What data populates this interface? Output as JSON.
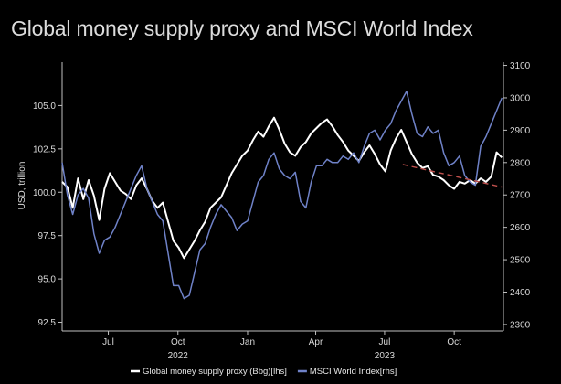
{
  "chart_data": {
    "type": "line",
    "title": "Global money supply proxy and MSCI World Index",
    "ylabel_left": "USD, trillion",
    "ylabel_right": "",
    "ylim_left": [
      92.0,
      107.5
    ],
    "ylim_right": [
      2280,
      3110
    ],
    "yticks_left": [
      "92.5",
      "95.0",
      "97.5",
      "100.0",
      "102.5",
      "105.0"
    ],
    "yticks_right": [
      "2300",
      "2400",
      "2500",
      "2600",
      "2700",
      "2800",
      "2900",
      "3000",
      "3100"
    ],
    "xlim": [
      "2022-05-01",
      "2023-12-05"
    ],
    "xticks": [
      {
        "label": "Jul",
        "date": "2022-07-01"
      },
      {
        "label": "Oct",
        "date": "2022-10-01"
      },
      {
        "label": "Jan",
        "date": "2023-01-01"
      },
      {
        "label": "Apr",
        "date": "2023-04-01"
      },
      {
        "label": "Jul",
        "date": "2023-07-01"
      },
      {
        "label": "Oct",
        "date": "2023-10-01"
      }
    ],
    "year_labels": [
      {
        "label": "2022",
        "date": "2022-10-01"
      },
      {
        "label": "2023",
        "date": "2023-07-01"
      }
    ],
    "series": [
      {
        "name": "Global money supply proxy (Bbg)[lhs]",
        "axis": "left",
        "color": "#ffffff",
        "points": [
          [
            "2022-05-01",
            100.6
          ],
          [
            "2022-05-08",
            100.3
          ],
          [
            "2022-05-15",
            99.1
          ],
          [
            "2022-05-22",
            100.8
          ],
          [
            "2022-05-29",
            99.6
          ],
          [
            "2022-06-05",
            100.7
          ],
          [
            "2022-06-12",
            99.8
          ],
          [
            "2022-06-19",
            98.4
          ],
          [
            "2022-06-26",
            100.2
          ],
          [
            "2022-07-03",
            101.1
          ],
          [
            "2022-07-10",
            100.6
          ],
          [
            "2022-07-17",
            100.1
          ],
          [
            "2022-07-24",
            99.9
          ],
          [
            "2022-07-31",
            99.6
          ],
          [
            "2022-08-07",
            100.4
          ],
          [
            "2022-08-14",
            100.8
          ],
          [
            "2022-08-21",
            100.2
          ],
          [
            "2022-08-28",
            99.5
          ],
          [
            "2022-09-04",
            99.1
          ],
          [
            "2022-09-11",
            99.4
          ],
          [
            "2022-09-18",
            98.3
          ],
          [
            "2022-09-25",
            97.2
          ],
          [
            "2022-10-02",
            96.8
          ],
          [
            "2022-10-09",
            96.2
          ],
          [
            "2022-10-16",
            96.7
          ],
          [
            "2022-10-23",
            97.2
          ],
          [
            "2022-10-30",
            97.8
          ],
          [
            "2022-11-06",
            98.3
          ],
          [
            "2022-11-13",
            99.1
          ],
          [
            "2022-11-20",
            99.4
          ],
          [
            "2022-11-27",
            99.7
          ],
          [
            "2022-12-04",
            100.4
          ],
          [
            "2022-12-11",
            101.1
          ],
          [
            "2022-12-18",
            101.6
          ],
          [
            "2022-12-25",
            102.1
          ],
          [
            "2023-01-01",
            102.4
          ],
          [
            "2023-01-08",
            103.0
          ],
          [
            "2023-01-15",
            103.5
          ],
          [
            "2023-01-22",
            103.2
          ],
          [
            "2023-01-29",
            103.8
          ],
          [
            "2023-02-05",
            104.3
          ],
          [
            "2023-02-12",
            103.6
          ],
          [
            "2023-02-19",
            102.8
          ],
          [
            "2023-02-26",
            102.3
          ],
          [
            "2023-03-05",
            102.1
          ],
          [
            "2023-03-12",
            102.6
          ],
          [
            "2023-03-19",
            102.9
          ],
          [
            "2023-03-26",
            103.4
          ],
          [
            "2023-04-02",
            103.7
          ],
          [
            "2023-04-09",
            104.0
          ],
          [
            "2023-04-16",
            104.2
          ],
          [
            "2023-04-23",
            103.8
          ],
          [
            "2023-04-30",
            103.3
          ],
          [
            "2023-05-07",
            102.9
          ],
          [
            "2023-05-14",
            102.4
          ],
          [
            "2023-05-21",
            102.1
          ],
          [
            "2023-05-28",
            101.8
          ],
          [
            "2023-06-04",
            102.3
          ],
          [
            "2023-06-11",
            102.7
          ],
          [
            "2023-06-18",
            102.2
          ],
          [
            "2023-06-25",
            101.6
          ],
          [
            "2023-07-02",
            101.2
          ],
          [
            "2023-07-09",
            102.4
          ],
          [
            "2023-07-16",
            103.1
          ],
          [
            "2023-07-23",
            103.6
          ],
          [
            "2023-07-30",
            102.9
          ],
          [
            "2023-08-06",
            102.2
          ],
          [
            "2023-08-13",
            101.7
          ],
          [
            "2023-08-20",
            101.4
          ],
          [
            "2023-08-27",
            101.5
          ],
          [
            "2023-09-03",
            101.0
          ],
          [
            "2023-09-10",
            100.9
          ],
          [
            "2023-09-17",
            100.7
          ],
          [
            "2023-09-24",
            100.4
          ],
          [
            "2023-10-01",
            100.2
          ],
          [
            "2023-10-08",
            100.6
          ],
          [
            "2023-10-15",
            100.5
          ],
          [
            "2023-10-22",
            100.7
          ],
          [
            "2023-10-29",
            100.5
          ],
          [
            "2023-11-05",
            100.8
          ],
          [
            "2023-11-12",
            100.6
          ],
          [
            "2023-11-19",
            100.9
          ],
          [
            "2023-11-26",
            102.3
          ],
          [
            "2023-12-03",
            102.0
          ]
        ]
      },
      {
        "name": "MSCI World Index[rhs]",
        "axis": "right",
        "color": "#6f82c8",
        "points": [
          [
            "2022-05-01",
            2800
          ],
          [
            "2022-05-08",
            2700
          ],
          [
            "2022-05-15",
            2640
          ],
          [
            "2022-05-22",
            2700
          ],
          [
            "2022-05-29",
            2720
          ],
          [
            "2022-06-05",
            2690
          ],
          [
            "2022-06-12",
            2580
          ],
          [
            "2022-06-19",
            2520
          ],
          [
            "2022-06-26",
            2560
          ],
          [
            "2022-07-03",
            2570
          ],
          [
            "2022-07-10",
            2600
          ],
          [
            "2022-07-17",
            2640
          ],
          [
            "2022-07-24",
            2680
          ],
          [
            "2022-07-31",
            2720
          ],
          [
            "2022-08-07",
            2760
          ],
          [
            "2022-08-14",
            2790
          ],
          [
            "2022-08-21",
            2720
          ],
          [
            "2022-08-28",
            2680
          ],
          [
            "2022-09-04",
            2640
          ],
          [
            "2022-09-11",
            2620
          ],
          [
            "2022-09-18",
            2520
          ],
          [
            "2022-09-25",
            2420
          ],
          [
            "2022-10-02",
            2420
          ],
          [
            "2022-10-09",
            2380
          ],
          [
            "2022-10-16",
            2390
          ],
          [
            "2022-10-23",
            2460
          ],
          [
            "2022-10-30",
            2530
          ],
          [
            "2022-11-06",
            2550
          ],
          [
            "2022-11-13",
            2600
          ],
          [
            "2022-11-20",
            2640
          ],
          [
            "2022-11-27",
            2670
          ],
          [
            "2022-12-04",
            2650
          ],
          [
            "2022-12-11",
            2630
          ],
          [
            "2022-12-18",
            2590
          ],
          [
            "2022-12-25",
            2610
          ],
          [
            "2023-01-01",
            2620
          ],
          [
            "2023-01-08",
            2680
          ],
          [
            "2023-01-15",
            2740
          ],
          [
            "2023-01-22",
            2760
          ],
          [
            "2023-01-29",
            2810
          ],
          [
            "2023-02-05",
            2830
          ],
          [
            "2023-02-12",
            2780
          ],
          [
            "2023-02-19",
            2760
          ],
          [
            "2023-02-26",
            2750
          ],
          [
            "2023-03-05",
            2770
          ],
          [
            "2023-03-12",
            2680
          ],
          [
            "2023-03-19",
            2660
          ],
          [
            "2023-03-26",
            2740
          ],
          [
            "2023-04-02",
            2790
          ],
          [
            "2023-04-09",
            2790
          ],
          [
            "2023-04-16",
            2810
          ],
          [
            "2023-04-23",
            2800
          ],
          [
            "2023-04-30",
            2800
          ],
          [
            "2023-05-07",
            2820
          ],
          [
            "2023-05-14",
            2810
          ],
          [
            "2023-05-21",
            2830
          ],
          [
            "2023-05-28",
            2800
          ],
          [
            "2023-06-04",
            2850
          ],
          [
            "2023-06-11",
            2890
          ],
          [
            "2023-06-18",
            2900
          ],
          [
            "2023-06-25",
            2870
          ],
          [
            "2023-07-02",
            2900
          ],
          [
            "2023-07-09",
            2920
          ],
          [
            "2023-07-16",
            2960
          ],
          [
            "2023-07-23",
            2990
          ],
          [
            "2023-07-30",
            3020
          ],
          [
            "2023-08-06",
            2950
          ],
          [
            "2023-08-13",
            2890
          ],
          [
            "2023-08-20",
            2880
          ],
          [
            "2023-08-27",
            2910
          ],
          [
            "2023-09-03",
            2890
          ],
          [
            "2023-09-10",
            2900
          ],
          [
            "2023-09-17",
            2830
          ],
          [
            "2023-09-24",
            2790
          ],
          [
            "2023-10-01",
            2800
          ],
          [
            "2023-10-08",
            2820
          ],
          [
            "2023-10-15",
            2760
          ],
          [
            "2023-10-22",
            2740
          ],
          [
            "2023-10-29",
            2730
          ],
          [
            "2023-11-05",
            2850
          ],
          [
            "2023-11-12",
            2880
          ],
          [
            "2023-11-19",
            2920
          ],
          [
            "2023-11-26",
            2960
          ],
          [
            "2023-12-03",
            3000
          ]
        ]
      }
    ],
    "trendline": {
      "axis": "left",
      "color": "#c0504d",
      "style": "dashed",
      "points": [
        [
          "2023-07-25",
          101.6
        ],
        [
          "2023-12-03",
          100.3
        ]
      ]
    },
    "legend": {
      "placement": "bottom",
      "items": [
        "Global money supply proxy (Bbg)[lhs]",
        "MSCI World Index[rhs]"
      ]
    },
    "grid": false
  }
}
